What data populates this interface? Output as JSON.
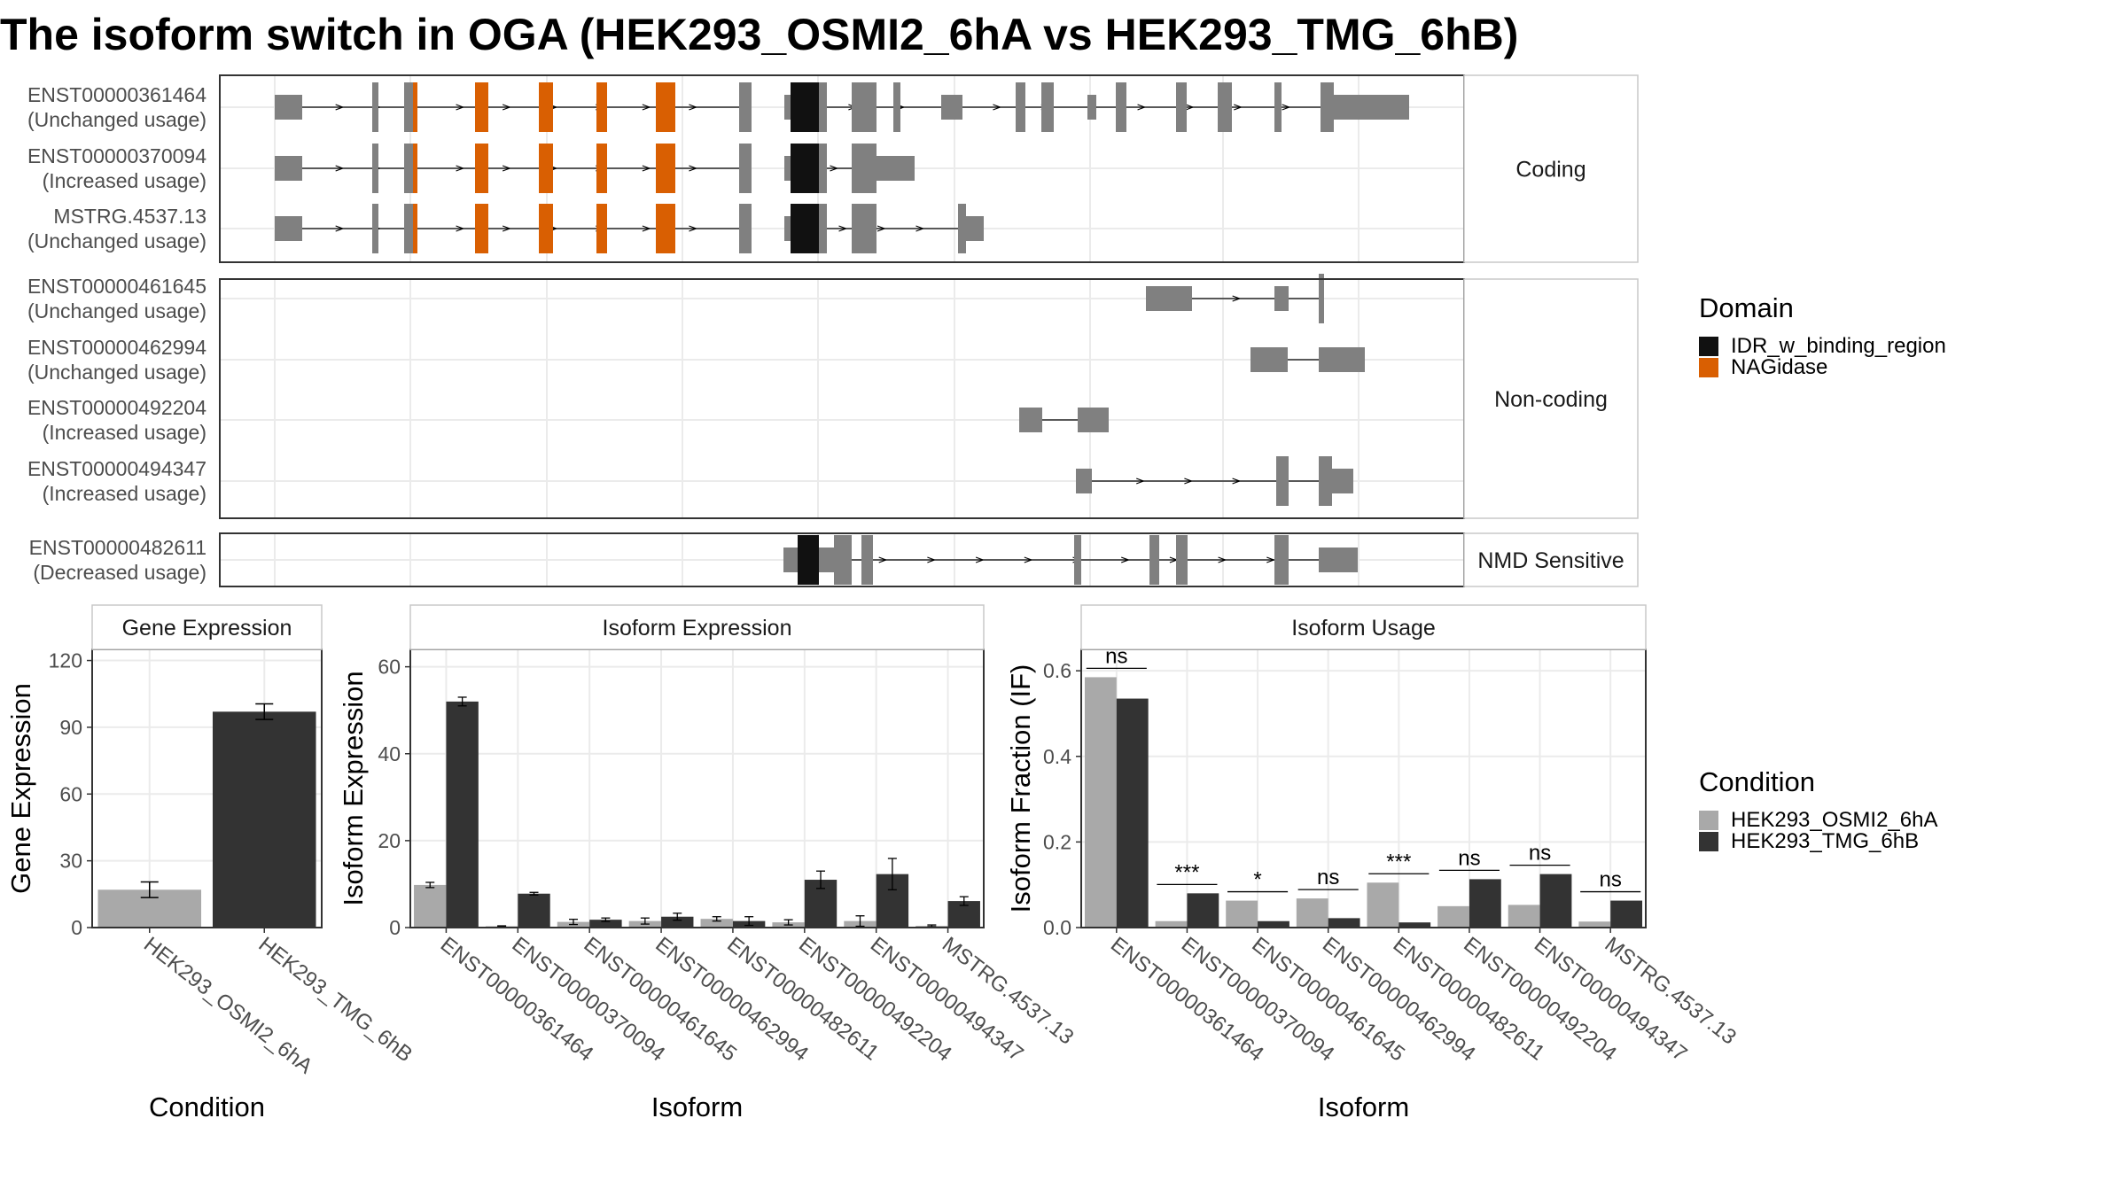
{
  "title": "The isoform switch in OGA (HEK293_OSMI2_6hA vs HEK293_TMG_6hB)",
  "colors": {
    "exon": "#808080",
    "idr": "#111111",
    "nagidase": "#d95f02",
    "cond_a": "#a9a9a9",
    "cond_b": "#333333",
    "strip_bg": "#ffffff",
    "grid": "#ebebeb",
    "panel_border": "#333333"
  },
  "structure": {
    "groups": [
      {
        "label": "Coding",
        "transcripts": [
          {
            "id": "ENST00000361464",
            "usage": "(Unchanged usage)"
          },
          {
            "id": "ENST00000370094",
            "usage": "(Increased usage)"
          },
          {
            "id": "MSTRG.4537.13",
            "usage": "(Unchanged usage)"
          }
        ]
      },
      {
        "label": "Non-coding",
        "transcripts": [
          {
            "id": "ENST00000461645",
            "usage": "(Unchanged usage)"
          },
          {
            "id": "ENST00000462994",
            "usage": "(Unchanged usage)"
          },
          {
            "id": "ENST00000492204",
            "usage": "(Increased usage)"
          },
          {
            "id": "ENST00000494347",
            "usage": "(Increased usage)"
          }
        ]
      },
      {
        "label": "NMD Sensitive",
        "transcripts": [
          {
            "id": "ENST00000482611",
            "usage": "(Decreased usage)"
          }
        ]
      }
    ]
  },
  "legend_domain": {
    "title": "Domain",
    "items": [
      {
        "label": "IDR_w_binding_region",
        "color": "#111111"
      },
      {
        "label": "NAGidase",
        "color": "#d95f02"
      }
    ]
  },
  "legend_condition": {
    "title": "Condition",
    "items": [
      {
        "label": "HEK293_OSMI2_6hA",
        "color": "#a9a9a9"
      },
      {
        "label": "HEK293_TMG_6hB",
        "color": "#333333"
      }
    ]
  },
  "chart_data": [
    {
      "type": "bar",
      "title": "Gene Expression",
      "xlabel": "Condition",
      "ylabel": "Gene Expression",
      "ylim": [
        0,
        125
      ],
      "yticks": [
        "0",
        "30",
        "60",
        "90",
        "120"
      ],
      "categories": [
        "HEK293_OSMI2_6hA",
        "HEK293_TMG_6hB"
      ],
      "values": [
        17,
        97
      ],
      "errors": [
        3.5,
        3.5
      ]
    },
    {
      "type": "bar",
      "title": "Isoform Expression",
      "xlabel": "Isoform",
      "ylabel": "Isoform Expression",
      "ylim": [
        0,
        64
      ],
      "yticks": [
        "0",
        "20",
        "40",
        "60"
      ],
      "categories": [
        "ENST00000361464",
        "ENST00000370094",
        "ENST00000461645",
        "ENST00000462994",
        "ENST00000482611",
        "ENST00000492204",
        "ENST00000494347",
        "MSTRG.4537.13"
      ],
      "series": [
        {
          "name": "HEK293_OSMI2_6hA",
          "values": [
            9.8,
            0.3,
            1.3,
            1.5,
            2.0,
            1.2,
            1.5,
            0.4
          ],
          "errors": [
            0.6,
            0.1,
            0.6,
            0.7,
            0.5,
            0.6,
            1.2,
            0.2
          ]
        },
        {
          "name": "HEK293_TMG_6hB",
          "values": [
            52,
            7.8,
            1.8,
            2.5,
            1.5,
            11,
            12.3,
            6.1
          ],
          "errors": [
            1.0,
            0.3,
            0.4,
            0.8,
            1.0,
            2.0,
            3.6,
            1.0
          ]
        }
      ]
    },
    {
      "type": "bar",
      "title": "Isoform Usage",
      "xlabel": "Isoform",
      "ylabel": "Isoform Fraction (IF)",
      "ylim": [
        0,
        0.65
      ],
      "yticks": [
        "0.0",
        "0.2",
        "0.4",
        "0.6"
      ],
      "categories": [
        "ENST00000361464",
        "ENST00000370094",
        "ENST00000461645",
        "ENST00000462994",
        "ENST00000482611",
        "ENST00000492204",
        "ENST00000494347",
        "MSTRG.4537.13"
      ],
      "series": [
        {
          "name": "HEK293_OSMI2_6hA",
          "values": [
            0.585,
            0.015,
            0.063,
            0.068,
            0.105,
            0.05,
            0.053,
            0.014
          ]
        },
        {
          "name": "HEK293_TMG_6hB",
          "values": [
            0.535,
            0.08,
            0.015,
            0.022,
            0.012,
            0.113,
            0.125,
            0.063
          ]
        }
      ],
      "significance": [
        "ns",
        "***",
        "*",
        "ns",
        "***",
        "ns",
        "ns",
        "ns"
      ]
    }
  ]
}
